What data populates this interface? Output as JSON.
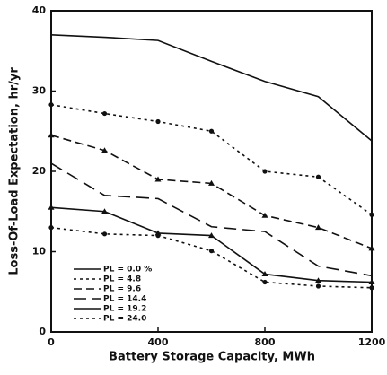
{
  "chart_data": {
    "type": "line",
    "xlabel": "Battery Storage Capacity, MWh",
    "ylabel": "Loss-Of-Load Expectation, hr/yr",
    "x": [
      0,
      200,
      400,
      600,
      800,
      1000,
      1200
    ],
    "xlim": [
      0,
      1200
    ],
    "xticks": [
      0,
      400,
      800,
      1200
    ],
    "ylim": [
      0,
      40
    ],
    "yticks": [
      0,
      10,
      20,
      30,
      40
    ],
    "legend": "lower left",
    "series": [
      {
        "name": "PL = 0.0 %",
        "color": "#111111",
        "dash": "none",
        "marker": "none",
        "values": [
          37.0,
          36.7,
          36.3,
          33.7,
          31.2,
          29.3,
          23.8
        ]
      },
      {
        "name": "PL = 4.8",
        "color": "#111111",
        "dash": "3 4",
        "marker": "circle",
        "values": [
          28.3,
          27.2,
          26.2,
          25.0,
          20.0,
          19.3,
          14.6
        ]
      },
      {
        "name": "PL = 9.6",
        "color": "#111111",
        "dash": "9 5",
        "marker": "triangle",
        "values": [
          24.5,
          22.6,
          19.0,
          18.5,
          14.5,
          13.0,
          10.4
        ]
      },
      {
        "name": "PL = 14.4",
        "color": "#111111",
        "dash": "14 7",
        "marker": "none",
        "values": [
          21.0,
          17.0,
          16.6,
          13.1,
          12.5,
          8.2,
          7.0
        ]
      },
      {
        "name": "PL = 19.2",
        "color": "#111111",
        "dash": "none",
        "marker": "triangle",
        "values": [
          15.5,
          15.0,
          12.3,
          12.0,
          7.2,
          6.4,
          6.2
        ]
      },
      {
        "name": "PL = 24.0",
        "color": "#111111",
        "dash": "3 4",
        "marker": "circle",
        "values": [
          13.0,
          12.2,
          12.0,
          10.1,
          6.2,
          5.7,
          5.5
        ]
      }
    ]
  }
}
